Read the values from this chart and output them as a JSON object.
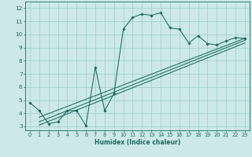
{
  "xlabel": "Humidex (Indice chaleur)",
  "xlim": [
    -0.5,
    23.5
  ],
  "ylim": [
    2.7,
    12.5
  ],
  "xticks": [
    0,
    1,
    2,
    3,
    4,
    5,
    6,
    7,
    8,
    9,
    10,
    11,
    12,
    13,
    14,
    15,
    16,
    17,
    18,
    19,
    20,
    21,
    22,
    23
  ],
  "yticks": [
    3,
    4,
    5,
    6,
    7,
    8,
    9,
    10,
    11,
    12
  ],
  "bg_color": "#cce8e8",
  "line_color": "#1a6b60",
  "grid_color": "#9ecece",
  "curve1_x": [
    0,
    1,
    2,
    3,
    4,
    5,
    6,
    7,
    8,
    9,
    10,
    11,
    12,
    13,
    14,
    15,
    16,
    17,
    18,
    19,
    20,
    21,
    22,
    23
  ],
  "curve1_y": [
    4.8,
    4.2,
    3.2,
    3.35,
    4.2,
    4.2,
    3.05,
    7.5,
    4.2,
    5.5,
    10.4,
    11.3,
    11.55,
    11.45,
    11.65,
    10.5,
    10.4,
    9.35,
    9.9,
    9.3,
    9.2,
    9.5,
    9.75,
    9.7
  ],
  "line1_x": [
    1,
    23
  ],
  "line1_y": [
    3.7,
    9.7
  ],
  "line2_x": [
    1,
    23
  ],
  "line2_y": [
    3.35,
    9.55
  ],
  "line3_x": [
    1,
    23
  ],
  "line3_y": [
    3.1,
    9.35
  ]
}
